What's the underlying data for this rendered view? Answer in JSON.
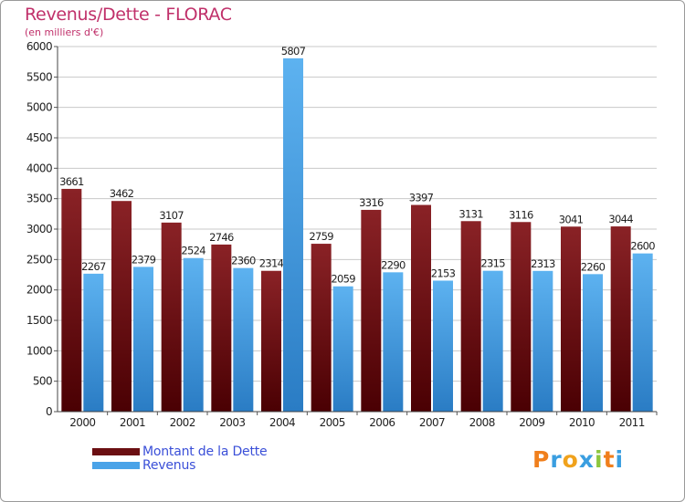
{
  "title": "Revenus/Dette - FLORAC",
  "subtitle": "(en milliers d'€)",
  "colors": {
    "dette": "#7a1418",
    "revenus": "#4aa3e8",
    "title": "#c0306a",
    "legend_text": "#3a4fd8"
  },
  "legend": [
    {
      "label": "Montant de la Dette",
      "color": "#6b0f12"
    },
    {
      "label": "Revenus",
      "color": "#4aa3e8"
    }
  ],
  "logo": {
    "text": "Proxiti",
    "letters": [
      "P",
      "r",
      "o",
      "x",
      "i",
      "t",
      "i"
    ]
  },
  "chart_data": {
    "type": "bar",
    "title": "Revenus/Dette - FLORAC",
    "ylabel": "(en milliers d'€)",
    "xlabel": "",
    "ylim": [
      0,
      6000
    ],
    "yticks": [
      0,
      500,
      1000,
      1500,
      2000,
      2500,
      3000,
      3500,
      4000,
      4500,
      5000,
      5500,
      6000
    ],
    "grid": true,
    "legend_position": "bottom-left",
    "categories": [
      "2000",
      "2001",
      "2002",
      "2003",
      "2004",
      "2005",
      "2006",
      "2007",
      "2008",
      "2009",
      "2010",
      "2011"
    ],
    "series": [
      {
        "name": "Montant de la Dette",
        "values": [
          3661,
          3462,
          3107,
          2746,
          2314,
          2759,
          3316,
          3397,
          3131,
          3116,
          3041,
          3044
        ]
      },
      {
        "name": "Revenus",
        "values": [
          2267,
          2379,
          2524,
          2360,
          5807,
          2059,
          2290,
          2153,
          2315,
          2313,
          2260,
          2600
        ]
      }
    ]
  }
}
